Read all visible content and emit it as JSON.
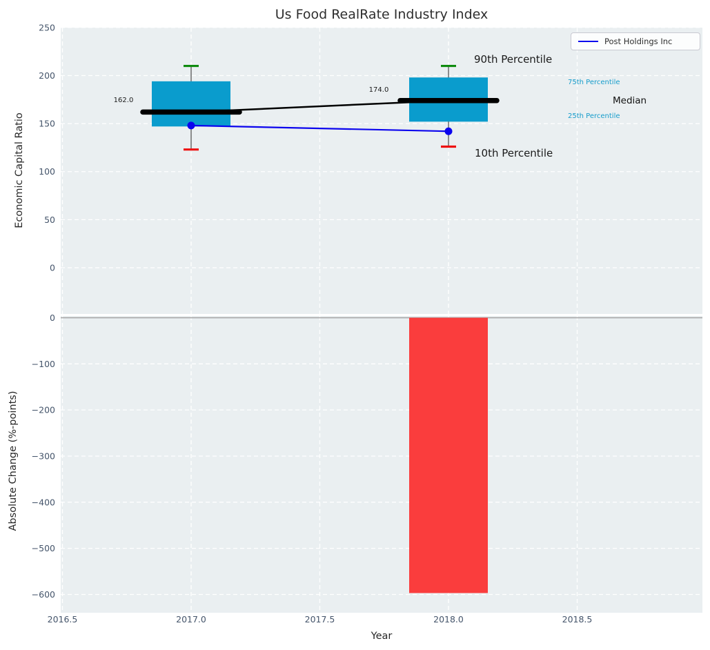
{
  "figure": {
    "title": "Us Food RealRate Industry Index"
  },
  "legend": {
    "label": "Post Holdings Inc"
  },
  "colors": {
    "box": "#0a9ccd",
    "bar_negative": "#fa3d3d",
    "company_line": "#0b04ee",
    "median_line": "#000000",
    "whisker": "#555555",
    "cap_90th": "#0e8b0e",
    "cap_10th": "#ee1111",
    "plot_background": "#eaeff1",
    "grid": "#ffffff",
    "zero_line": "#a3a3a3",
    "tick_label": "#44546a",
    "text": "#1a1a1a",
    "percentile_label_cyan": "#159ccb"
  },
  "chart_data": {
    "type": "combo: percentile-box + line (top) and bar (bottom)",
    "x_years": [
      2017,
      2018
    ],
    "xlabel": "Year",
    "x_ticks": [
      {
        "label": "2016.5",
        "value": 2016.5
      },
      {
        "label": "2017.0",
        "value": 2017.0
      },
      {
        "label": "2017.5",
        "value": 2017.5
      },
      {
        "label": "2018.0",
        "value": 2018.0
      },
      {
        "label": "2018.5",
        "value": 2018.5
      }
    ],
    "top_panel": {
      "ylabel": "Economic Capital Ratio",
      "ylim": [
        -48,
        250
      ],
      "y_ticks": [
        {
          "label": "250",
          "value": 250
        },
        {
          "label": "200",
          "value": 200
        },
        {
          "label": "150",
          "value": 150
        },
        {
          "label": "100",
          "value": 100
        },
        {
          "label": "50",
          "value": 50
        },
        {
          "label": "0",
          "value": 0
        }
      ],
      "percentiles": {
        "p90": [
          210,
          210
        ],
        "p75": [
          194,
          198
        ],
        "median": [
          162,
          174
        ],
        "p25": [
          147,
          152
        ],
        "p10": [
          123,
          126
        ]
      },
      "median_value_labels": [
        "162.0",
        "174.0"
      ],
      "series": [
        {
          "name": "Post Holdings Inc",
          "values": [
            148,
            142
          ]
        }
      ],
      "annotations": [
        {
          "id": "90th",
          "text": "90th Percentile"
        },
        {
          "id": "75th",
          "text": "75th Percentile"
        },
        {
          "id": "median",
          "text": "Median"
        },
        {
          "id": "25th",
          "text": "25th Percentile"
        },
        {
          "id": "10th",
          "text": "10th Percentile"
        }
      ]
    },
    "bottom_panel": {
      "ylabel": "Absolute Change (%-points)",
      "ylim": [
        -640,
        5
      ],
      "y_ticks": [
        {
          "label": "0",
          "value": 0
        },
        {
          "label": "−100",
          "value": -100
        },
        {
          "label": "−200",
          "value": -200
        },
        {
          "label": "−300",
          "value": -300
        },
        {
          "label": "−400",
          "value": -400
        },
        {
          "label": "−500",
          "value": -500
        },
        {
          "label": "−600",
          "value": -600
        }
      ],
      "bars": [
        {
          "x": 2018,
          "value": -597
        }
      ]
    }
  }
}
